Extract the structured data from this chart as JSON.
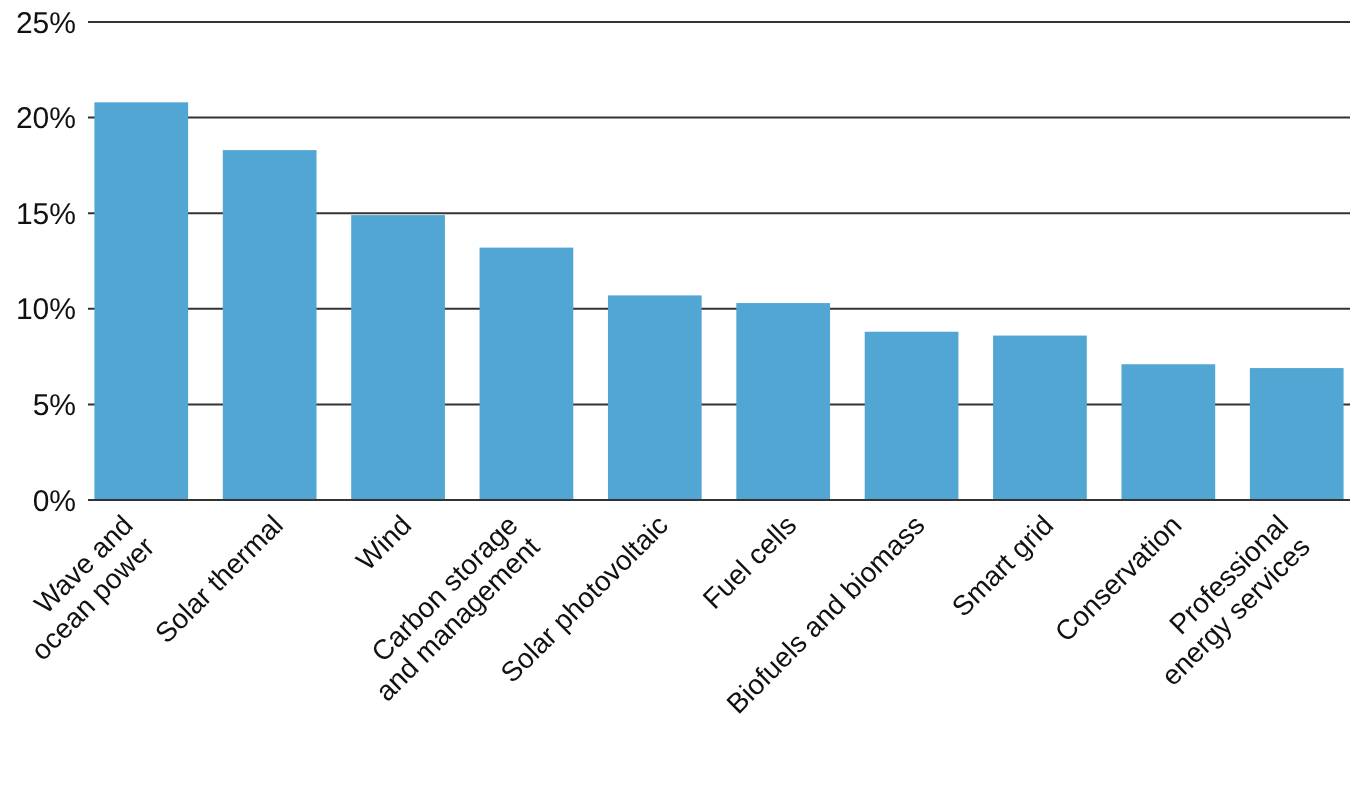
{
  "chart_data": {
    "type": "bar",
    "categories": [
      "Wave and\nocean power",
      "Solar thermal",
      "Wind",
      "Carbon storage\nand management",
      "Solar photovoltaic",
      "Fuel cells",
      "Biofuels and biomass",
      "Smart grid",
      "Conservation",
      "Professional\nenergy services"
    ],
    "values": [
      20.8,
      18.3,
      14.9,
      13.2,
      10.7,
      10.3,
      8.8,
      8.6,
      7.1,
      6.9
    ],
    "color": "#52a6d3",
    "ylim": [
      0,
      25
    ],
    "yticks": [
      {
        "value": 0,
        "label": "0%"
      },
      {
        "value": 5,
        "label": "5%"
      },
      {
        "value": 10,
        "label": "10%"
      },
      {
        "value": 15,
        "label": "15%"
      },
      {
        "value": 20,
        "label": "20%"
      },
      {
        "value": 25,
        "label": "25%"
      }
    ],
    "grid": "y"
  }
}
